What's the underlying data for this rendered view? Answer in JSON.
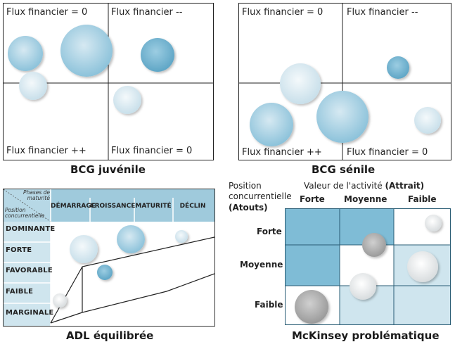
{
  "bcg_juvenile": {
    "caption": "BCG juvénile",
    "q_top_left": "Flux financier = 0",
    "q_top_right": "Flux financier --",
    "q_bottom_left": "Flux financier ++",
    "q_bottom_right": "Flux financier = 0"
  },
  "bcg_senile": {
    "caption": "BCG sénile",
    "q_top_left": "Flux financier = 0",
    "q_top_right": "Flux financier --",
    "q_bottom_left": "Flux financier ++",
    "q_bottom_right": "Flux financier = 0"
  },
  "adl": {
    "caption": "ADL équilibrée",
    "header_phases": "Phases de maturité",
    "header_position": "Position concurrentielle",
    "columns": [
      "DÉMARRAGE",
      "CROISSANCE",
      "MATURITÉ",
      "DÉCLIN"
    ],
    "rows": [
      "DOMINANTE",
      "FORTE",
      "FAVORABLE",
      "FAIBLE",
      "MARGINALE"
    ]
  },
  "mckinsey": {
    "caption": "McKinsey problématique",
    "position_label_1": "Position",
    "position_label_2": "concurrentielle",
    "position_label_3": "(Atouts)",
    "value_label": "Valeur de l'activité",
    "value_label_bold": "(Attrait)",
    "columns": [
      "Forte",
      "Moyenne",
      "Faible"
    ],
    "rows": [
      "Forte",
      "Moyenne",
      "Faible"
    ]
  },
  "colors": {
    "cell_dark": "#7fbcd6",
    "cell_light": "#cfe5ee",
    "bubble_blue_light": "#b5d6e6",
    "bubble_blue_mid": "#86bfd8",
    "bubble_gray": "#a6a6a6",
    "bubble_white": "#e8f1f6"
  }
}
